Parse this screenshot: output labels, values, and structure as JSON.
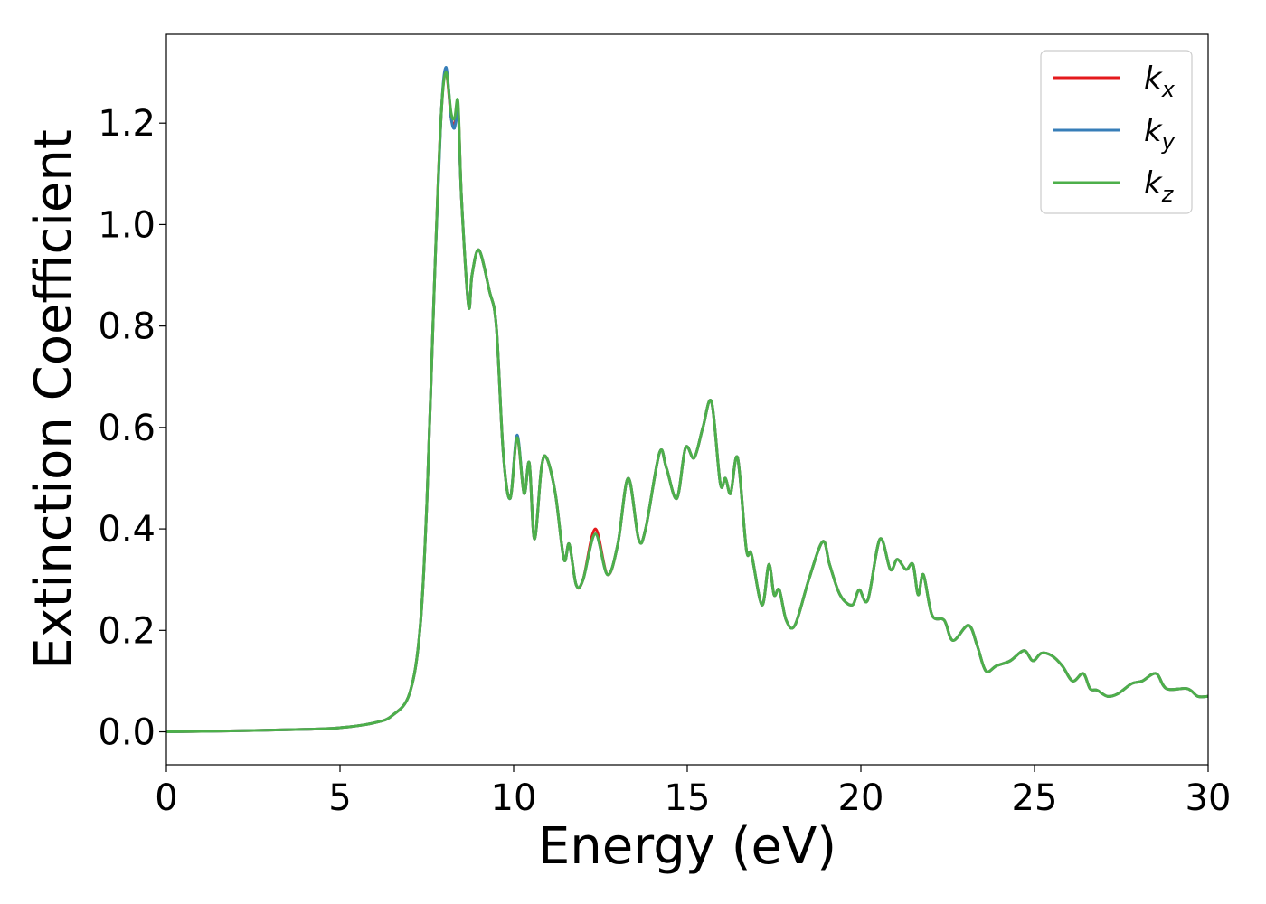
{
  "chart_data": {
    "type": "line",
    "title": "",
    "xlabel": "Energy (eV)",
    "ylabel": "Extinction Coefficient",
    "xlim": [
      0,
      30
    ],
    "ylim": [
      -0.065,
      1.375
    ],
    "xticks": [
      0,
      5,
      10,
      15,
      20,
      25,
      30
    ],
    "xtick_labels": [
      "0",
      "5",
      "10",
      "15",
      "20",
      "25",
      "30"
    ],
    "yticks": [
      0.0,
      0.2,
      0.4,
      0.6,
      0.8,
      1.0,
      1.2
    ],
    "ytick_labels": [
      "0.0",
      "0.2",
      "0.4",
      "0.6",
      "0.8",
      "1.0",
      "1.2"
    ],
    "grid": false,
    "legend_position": "top-right",
    "x": [
      0,
      2,
      4,
      5,
      6,
      6.5,
      7,
      7.3,
      7.5,
      7.7,
      7.9,
      8.05,
      8.2,
      8.3,
      8.4,
      8.5,
      8.7,
      8.8,
      9.0,
      9.3,
      9.5,
      9.7,
      9.9,
      10.1,
      10.3,
      10.45,
      10.6,
      10.8,
      10.95,
      11.2,
      11.45,
      11.6,
      11.8,
      12.0,
      12.35,
      12.7,
      13.0,
      13.3,
      13.6,
      13.8,
      14.2,
      14.4,
      14.7,
      14.95,
      15.2,
      15.45,
      15.7,
      15.95,
      16.1,
      16.25,
      16.45,
      16.7,
      16.85,
      17.15,
      17.35,
      17.5,
      17.65,
      17.85,
      18.1,
      18.5,
      18.9,
      19.1,
      19.4,
      19.75,
      19.95,
      20.2,
      20.55,
      20.85,
      21.05,
      21.3,
      21.5,
      21.65,
      21.8,
      22.05,
      22.4,
      22.65,
      23.1,
      23.35,
      23.6,
      23.9,
      24.3,
      24.7,
      24.95,
      25.2,
      25.5,
      25.8,
      26.1,
      26.4,
      26.6,
      26.8,
      27.1,
      27.4,
      27.8,
      28.1,
      28.5,
      28.8,
      29.4,
      29.7,
      30.0
    ],
    "series": [
      {
        "name": "k_x",
        "color": "#e41a1c",
        "values": [
          0.0,
          0.002,
          0.005,
          0.008,
          0.018,
          0.032,
          0.075,
          0.2,
          0.45,
          0.85,
          1.2,
          1.3,
          1.21,
          1.2,
          1.23,
          1.05,
          0.84,
          0.9,
          0.95,
          0.87,
          0.8,
          0.55,
          0.46,
          0.58,
          0.47,
          0.53,
          0.38,
          0.52,
          0.54,
          0.47,
          0.34,
          0.37,
          0.29,
          0.3,
          0.4,
          0.31,
          0.37,
          0.5,
          0.38,
          0.4,
          0.55,
          0.52,
          0.46,
          0.56,
          0.54,
          0.6,
          0.65,
          0.49,
          0.5,
          0.47,
          0.54,
          0.36,
          0.35,
          0.25,
          0.33,
          0.27,
          0.28,
          0.22,
          0.21,
          0.3,
          0.375,
          0.33,
          0.27,
          0.25,
          0.28,
          0.26,
          0.38,
          0.32,
          0.34,
          0.32,
          0.33,
          0.27,
          0.31,
          0.23,
          0.22,
          0.18,
          0.21,
          0.17,
          0.12,
          0.13,
          0.14,
          0.16,
          0.14,
          0.155,
          0.15,
          0.13,
          0.1,
          0.115,
          0.085,
          0.082,
          0.07,
          0.075,
          0.095,
          0.1,
          0.115,
          0.085,
          0.085,
          0.07,
          0.07
        ]
      },
      {
        "name": "k_y",
        "color": "#377eb8",
        "values": [
          0.0,
          0.002,
          0.005,
          0.008,
          0.018,
          0.032,
          0.075,
          0.2,
          0.45,
          0.85,
          1.2,
          1.31,
          1.21,
          1.19,
          1.22,
          1.05,
          0.84,
          0.9,
          0.95,
          0.87,
          0.8,
          0.55,
          0.46,
          0.585,
          0.47,
          0.53,
          0.38,
          0.52,
          0.54,
          0.47,
          0.34,
          0.37,
          0.29,
          0.3,
          0.39,
          0.31,
          0.37,
          0.5,
          0.38,
          0.4,
          0.55,
          0.52,
          0.46,
          0.56,
          0.54,
          0.6,
          0.65,
          0.49,
          0.5,
          0.47,
          0.54,
          0.36,
          0.35,
          0.25,
          0.33,
          0.27,
          0.28,
          0.22,
          0.21,
          0.3,
          0.375,
          0.33,
          0.27,
          0.25,
          0.28,
          0.26,
          0.38,
          0.32,
          0.34,
          0.32,
          0.33,
          0.27,
          0.31,
          0.23,
          0.22,
          0.18,
          0.21,
          0.17,
          0.12,
          0.13,
          0.14,
          0.16,
          0.14,
          0.155,
          0.15,
          0.13,
          0.1,
          0.115,
          0.085,
          0.082,
          0.07,
          0.075,
          0.095,
          0.1,
          0.115,
          0.085,
          0.085,
          0.07,
          0.07
        ]
      },
      {
        "name": "k_z",
        "color": "#4daf4a",
        "values": [
          0.0,
          0.002,
          0.005,
          0.008,
          0.018,
          0.032,
          0.075,
          0.2,
          0.45,
          0.85,
          1.2,
          1.3,
          1.22,
          1.21,
          1.24,
          1.05,
          0.84,
          0.9,
          0.95,
          0.87,
          0.8,
          0.55,
          0.46,
          0.58,
          0.47,
          0.53,
          0.38,
          0.52,
          0.54,
          0.47,
          0.34,
          0.37,
          0.29,
          0.3,
          0.39,
          0.31,
          0.37,
          0.5,
          0.38,
          0.4,
          0.55,
          0.52,
          0.46,
          0.56,
          0.54,
          0.6,
          0.65,
          0.49,
          0.5,
          0.47,
          0.54,
          0.36,
          0.35,
          0.25,
          0.33,
          0.27,
          0.28,
          0.22,
          0.21,
          0.3,
          0.375,
          0.33,
          0.27,
          0.25,
          0.28,
          0.26,
          0.38,
          0.32,
          0.34,
          0.32,
          0.33,
          0.27,
          0.31,
          0.23,
          0.22,
          0.18,
          0.21,
          0.17,
          0.12,
          0.13,
          0.14,
          0.16,
          0.14,
          0.155,
          0.15,
          0.13,
          0.1,
          0.115,
          0.085,
          0.082,
          0.07,
          0.075,
          0.095,
          0.1,
          0.115,
          0.085,
          0.085,
          0.07,
          0.07
        ]
      }
    ],
    "legend": [
      {
        "symbol": "k",
        "subscript": "x",
        "color": "#e41a1c"
      },
      {
        "symbol": "k",
        "subscript": "y",
        "color": "#377eb8"
      },
      {
        "symbol": "k",
        "subscript": "z",
        "color": "#4daf4a"
      }
    ]
  }
}
